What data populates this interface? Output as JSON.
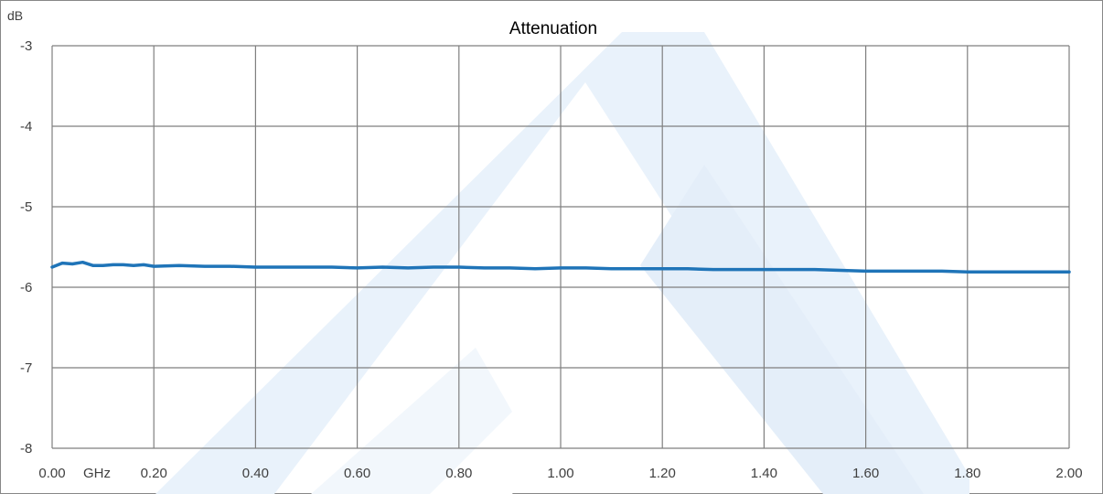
{
  "chart_data": {
    "type": "line",
    "title": "Attenuation",
    "ylabel": "dB",
    "xlabel": "GHz",
    "xlim": [
      0,
      2
    ],
    "ylim": [
      -8,
      -3
    ],
    "x_ticks": [
      "0.00",
      "0.20",
      "0.40",
      "0.60",
      "0.80",
      "1.00",
      "1.20",
      "1.40",
      "1.60",
      "1.80",
      "2.00"
    ],
    "y_ticks": [
      "-3",
      "-4",
      "-5",
      "-6",
      "-7",
      "-8"
    ],
    "x_tick_values": [
      0,
      0.2,
      0.4,
      0.6,
      0.8,
      1.0,
      1.2,
      1.4,
      1.6,
      1.8,
      2.0
    ],
    "y_tick_values": [
      -3,
      -4,
      -5,
      -6,
      -7,
      -8
    ],
    "grid": true,
    "legend": "none",
    "series": [
      {
        "color": "#1f74b8",
        "x": [
          0.0,
          0.02,
          0.04,
          0.06,
          0.08,
          0.1,
          0.12,
          0.14,
          0.16,
          0.18,
          0.2,
          0.25,
          0.3,
          0.35,
          0.4,
          0.45,
          0.5,
          0.55,
          0.6,
          0.65,
          0.7,
          0.75,
          0.8,
          0.85,
          0.9,
          0.95,
          1.0,
          1.05,
          1.1,
          1.15,
          1.2,
          1.25,
          1.3,
          1.35,
          1.4,
          1.45,
          1.5,
          1.55,
          1.6,
          1.65,
          1.7,
          1.75,
          1.8,
          1.85,
          1.9,
          1.95,
          2.0
        ],
        "y": [
          -5.75,
          -5.7,
          -5.71,
          -5.69,
          -5.73,
          -5.73,
          -5.72,
          -5.72,
          -5.73,
          -5.72,
          -5.74,
          -5.73,
          -5.74,
          -5.74,
          -5.75,
          -5.75,
          -5.75,
          -5.75,
          -5.76,
          -5.75,
          -5.76,
          -5.75,
          -5.75,
          -5.76,
          -5.76,
          -5.77,
          -5.76,
          -5.76,
          -5.77,
          -5.77,
          -5.77,
          -5.77,
          -5.78,
          -5.78,
          -5.78,
          -5.78,
          -5.78,
          -5.79,
          -5.8,
          -5.8,
          -5.8,
          -5.8,
          -5.81,
          -5.81,
          -5.81,
          -5.81,
          -5.81
        ]
      }
    ]
  },
  "colors": {
    "line": "#1f74b8",
    "grid": "#7f7f7f",
    "frame": "#888888",
    "watermark": "#e8f1fa"
  }
}
